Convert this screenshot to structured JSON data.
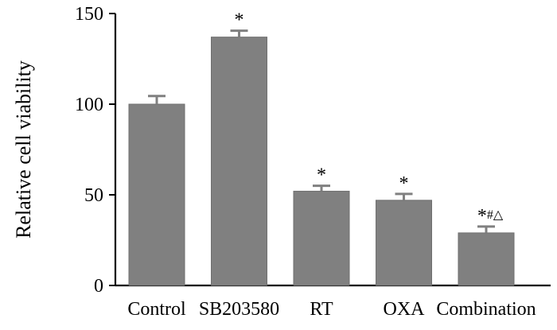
{
  "chart_data": {
    "type": "bar",
    "title": "",
    "xlabel": "",
    "ylabel": "Relative cell viability",
    "ylim": [
      0,
      150
    ],
    "yticks": [
      0,
      50,
      100,
      150
    ],
    "grid": false,
    "categories": [
      "Control",
      "SB203580",
      "RT",
      "OXA",
      "Combination"
    ],
    "series": [
      {
        "name": "Relative cell viability",
        "values": [
          100,
          137,
          52,
          47,
          29
        ],
        "errors": [
          4.5,
          3.5,
          3,
          3.5,
          3.5
        ],
        "annotations": [
          "",
          "*",
          "*",
          "*",
          "*#△"
        ]
      }
    ],
    "colors": {
      "bar": "#808080",
      "axis": "#000000",
      "text": "#000000"
    }
  }
}
